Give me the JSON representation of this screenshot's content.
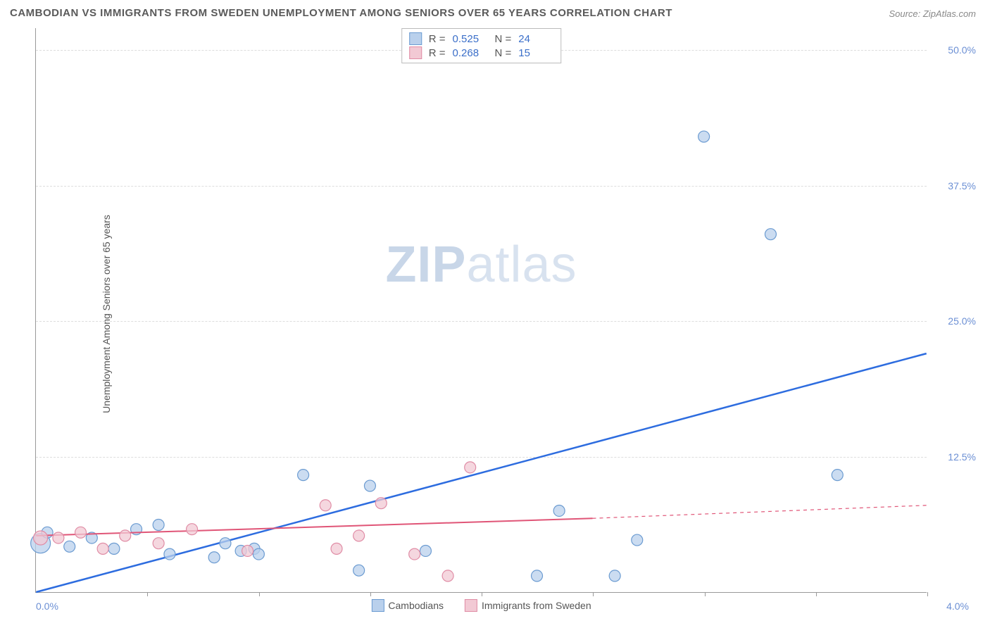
{
  "title": "CAMBODIAN VS IMMIGRANTS FROM SWEDEN UNEMPLOYMENT AMONG SENIORS OVER 65 YEARS CORRELATION CHART",
  "source": "Source: ZipAtlas.com",
  "y_axis_label": "Unemployment Among Seniors over 65 years",
  "watermark_bold": "ZIP",
  "watermark_light": "atlas",
  "chart": {
    "type": "scatter",
    "x_min": 0.0,
    "x_max": 4.0,
    "y_min": 0.0,
    "y_max": 52.0,
    "x_min_label": "0.0%",
    "x_max_label": "4.0%",
    "y_ticks": [
      12.5,
      25.0,
      37.5,
      50.0
    ],
    "y_tick_labels": [
      "12.5%",
      "25.0%",
      "37.5%",
      "50.0%"
    ],
    "x_tick_positions": [
      0.5,
      1.0,
      1.5,
      2.0,
      2.5,
      3.0,
      3.5,
      4.0
    ],
    "background_color": "#ffffff",
    "grid_color": "#dddddd",
    "axis_color": "#999999",
    "tick_label_color": "#6b8fd4"
  },
  "series": [
    {
      "name": "Cambodians",
      "fill": "#b9d0ec",
      "stroke": "#6b9bd1",
      "marker_radius": 8,
      "regression": {
        "x1": 0.0,
        "y1": 0.0,
        "x2": 4.0,
        "y2": 22.0,
        "color": "#2d6cdf",
        "width": 2.5,
        "dash": null,
        "extend_dash_from": null
      },
      "points": [
        {
          "x": 0.02,
          "y": 4.5,
          "r": 14
        },
        {
          "x": 0.05,
          "y": 5.5,
          "r": 8
        },
        {
          "x": 0.15,
          "y": 4.2,
          "r": 8
        },
        {
          "x": 0.25,
          "y": 5.0,
          "r": 8
        },
        {
          "x": 0.35,
          "y": 4.0,
          "r": 8
        },
        {
          "x": 0.45,
          "y": 5.8,
          "r": 8
        },
        {
          "x": 0.55,
          "y": 6.2,
          "r": 8
        },
        {
          "x": 0.6,
          "y": 3.5,
          "r": 8
        },
        {
          "x": 0.8,
          "y": 3.2,
          "r": 8
        },
        {
          "x": 0.85,
          "y": 4.5,
          "r": 8
        },
        {
          "x": 0.92,
          "y": 3.8,
          "r": 8
        },
        {
          "x": 0.98,
          "y": 4.0,
          "r": 8
        },
        {
          "x": 1.0,
          "y": 3.5,
          "r": 8
        },
        {
          "x": 1.2,
          "y": 10.8,
          "r": 8
        },
        {
          "x": 1.45,
          "y": 2.0,
          "r": 8
        },
        {
          "x": 1.5,
          "y": 9.8,
          "r": 8
        },
        {
          "x": 1.75,
          "y": 3.8,
          "r": 8
        },
        {
          "x": 2.25,
          "y": 1.5,
          "r": 8
        },
        {
          "x": 2.35,
          "y": 7.5,
          "r": 8
        },
        {
          "x": 2.6,
          "y": 1.5,
          "r": 8
        },
        {
          "x": 2.7,
          "y": 4.8,
          "r": 8
        },
        {
          "x": 3.0,
          "y": 42.0,
          "r": 8
        },
        {
          "x": 3.3,
          "y": 33.0,
          "r": 8
        },
        {
          "x": 3.6,
          "y": 10.8,
          "r": 8
        }
      ]
    },
    {
      "name": "Immigrants from Sweden",
      "fill": "#f2c9d4",
      "stroke": "#e08ca5",
      "marker_radius": 8,
      "regression": {
        "x1": 0.0,
        "y1": 5.2,
        "x2": 2.5,
        "y2": 6.8,
        "color": "#e05577",
        "width": 2,
        "dash": null,
        "extend_dash_from": 2.5,
        "extend_x2": 4.0,
        "extend_y2": 8.0
      },
      "points": [
        {
          "x": 0.02,
          "y": 5.0,
          "r": 10
        },
        {
          "x": 0.1,
          "y": 5.0,
          "r": 8
        },
        {
          "x": 0.2,
          "y": 5.5,
          "r": 8
        },
        {
          "x": 0.3,
          "y": 4.0,
          "r": 8
        },
        {
          "x": 0.4,
          "y": 5.2,
          "r": 8
        },
        {
          "x": 0.55,
          "y": 4.5,
          "r": 8
        },
        {
          "x": 0.7,
          "y": 5.8,
          "r": 8
        },
        {
          "x": 0.95,
          "y": 3.8,
          "r": 8
        },
        {
          "x": 1.3,
          "y": 8.0,
          "r": 8
        },
        {
          "x": 1.35,
          "y": 4.0,
          "r": 8
        },
        {
          "x": 1.45,
          "y": 5.2,
          "r": 8
        },
        {
          "x": 1.55,
          "y": 8.2,
          "r": 8
        },
        {
          "x": 1.7,
          "y": 3.5,
          "r": 8
        },
        {
          "x": 1.85,
          "y": 1.5,
          "r": 8
        },
        {
          "x": 1.95,
          "y": 11.5,
          "r": 8
        }
      ]
    }
  ],
  "stats": [
    {
      "swatch_fill": "#b9d0ec",
      "swatch_stroke": "#6b9bd1",
      "r_label": "R =",
      "r_value": "0.525",
      "n_label": "N =",
      "n_value": "24"
    },
    {
      "swatch_fill": "#f2c9d4",
      "swatch_stroke": "#e08ca5",
      "r_label": "R =",
      "r_value": "0.268",
      "n_label": "N =",
      "n_value": "15"
    }
  ],
  "legend": [
    {
      "swatch_fill": "#b9d0ec",
      "swatch_stroke": "#6b9bd1",
      "label": "Cambodians"
    },
    {
      "swatch_fill": "#f2c9d4",
      "swatch_stroke": "#e08ca5",
      "label": "Immigrants from Sweden"
    }
  ]
}
